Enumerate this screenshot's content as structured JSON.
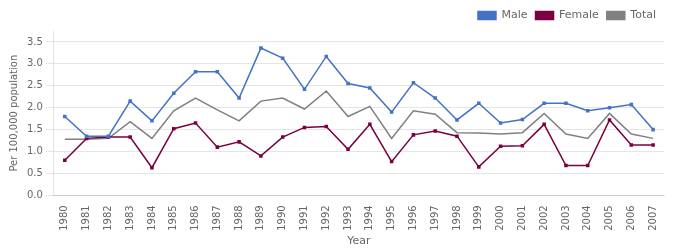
{
  "chart_data": {
    "type": "line",
    "x": [
      1980,
      1981,
      1982,
      1983,
      1984,
      1985,
      1986,
      1987,
      1988,
      1989,
      1990,
      1991,
      1992,
      1993,
      1994,
      1995,
      1996,
      1997,
      1998,
      1999,
      2000,
      2001,
      2002,
      2003,
      2004,
      2005,
      2006,
      2007
    ],
    "series": [
      {
        "name": "Male",
        "color": "#4472c4",
        "marker": "square",
        "values": [
          1.8,
          1.35,
          1.35,
          2.15,
          1.7,
          2.33,
          2.82,
          2.82,
          2.22,
          3.36,
          3.13,
          2.42,
          3.17,
          2.55,
          2.45,
          1.9,
          2.57,
          2.22,
          1.72,
          2.1,
          1.65,
          1.73,
          2.1,
          2.1,
          1.93,
          2.0,
          2.07,
          1.5
        ]
      },
      {
        "name": "Female",
        "color": "#7b0041",
        "marker": "square",
        "values": [
          0.8,
          1.3,
          1.33,
          1.33,
          0.63,
          1.52,
          1.65,
          1.1,
          1.22,
          0.9,
          1.33,
          1.55,
          1.57,
          1.05,
          1.62,
          0.77,
          1.38,
          1.47,
          1.35,
          0.65,
          1.12,
          1.13,
          1.62,
          0.68,
          0.68,
          1.72,
          1.15,
          1.15
        ]
      },
      {
        "name": "Total",
        "color": "#808080",
        "marker": "none",
        "values": [
          1.28,
          1.28,
          1.3,
          1.68,
          1.3,
          1.93,
          2.22,
          1.95,
          1.7,
          2.15,
          2.22,
          1.97,
          2.38,
          1.8,
          2.03,
          1.3,
          1.93,
          1.85,
          1.43,
          1.42,
          1.4,
          1.43,
          1.87,
          1.4,
          1.3,
          1.87,
          1.4,
          1.3
        ]
      }
    ],
    "xlabel": "Year",
    "ylabel": "Per 100,000 population",
    "xlim": [
      1979.5,
      2007.5
    ],
    "xticks": [
      1980,
      1981,
      1982,
      1983,
      1984,
      1985,
      1986,
      1987,
      1988,
      1989,
      1990,
      1991,
      1992,
      1993,
      1994,
      1995,
      1996,
      1997,
      1998,
      1999,
      2000,
      2001,
      2002,
      2003,
      2004,
      2005,
      2006,
      2007
    ],
    "ylim": [
      0.0,
      3.75
    ],
    "yticks": [
      {
        "value": 0,
        "label": "0.0"
      },
      0.5,
      {
        "value": 1,
        "label": "1.0"
      },
      1.5,
      {
        "value": 2,
        "label": "2.0"
      },
      2.5,
      {
        "value": 3,
        "label": "3.0"
      },
      3.5
    ],
    "grid": true,
    "legend": "upper right"
  }
}
